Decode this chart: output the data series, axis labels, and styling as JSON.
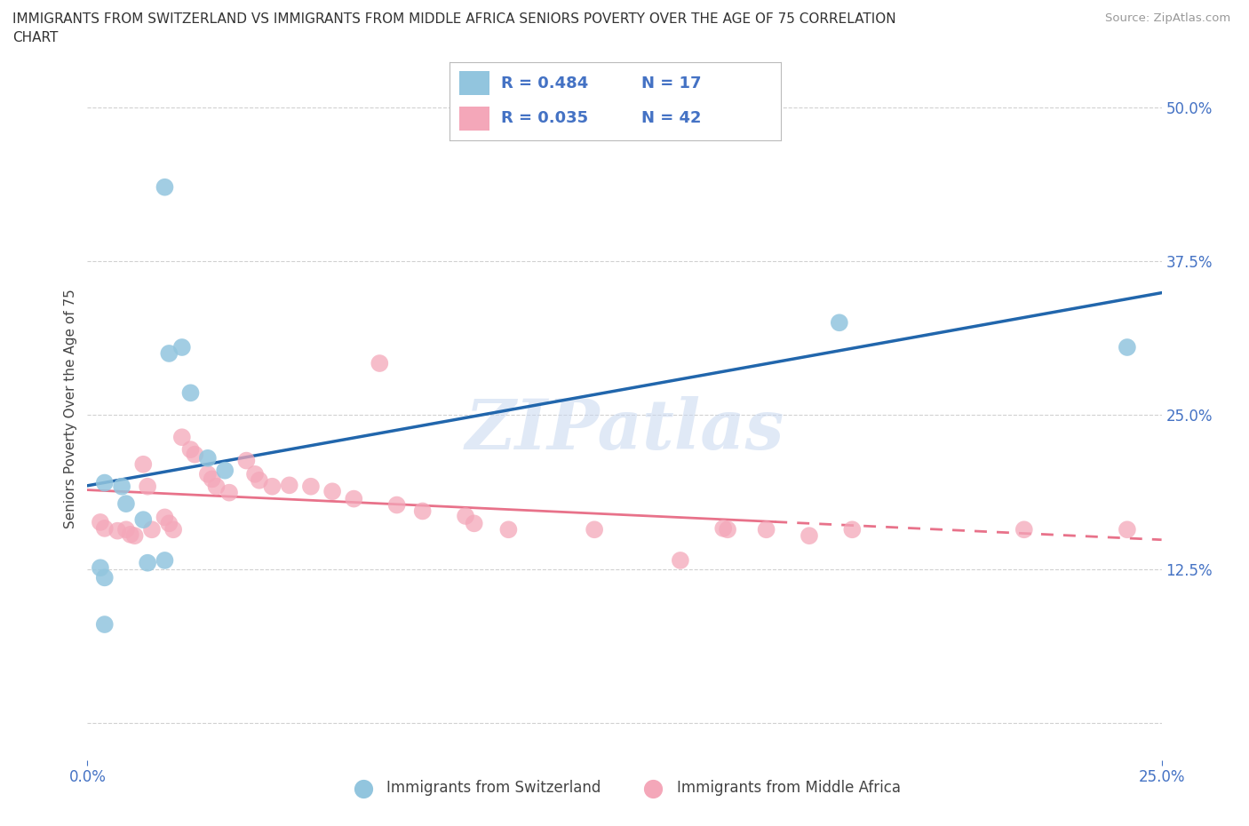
{
  "title_line1": "IMMIGRANTS FROM SWITZERLAND VS IMMIGRANTS FROM MIDDLE AFRICA SENIORS POVERTY OVER THE AGE OF 75 CORRELATION",
  "title_line2": "CHART",
  "source": "Source: ZipAtlas.com",
  "ylabel": "Seniors Poverty Over the Age of 75",
  "legend_label1": "Immigrants from Switzerland",
  "legend_label2": "Immigrants from Middle Africa",
  "R1": 0.484,
  "N1": 17,
  "R2": 0.035,
  "N2": 42,
  "color1": "#92c5de",
  "color2": "#f4a7b9",
  "trendline1_color": "#2166ac",
  "trendline2_color": "#e8728a",
  "watermark": "ZIPatlas",
  "xlim": [
    0.0,
    0.25
  ],
  "ylim": [
    -0.03,
    0.54
  ],
  "ytick_vals": [
    0.0,
    0.125,
    0.25,
    0.375,
    0.5
  ],
  "ytick_labels": [
    "",
    "12.5%",
    "25.0%",
    "37.5%",
    "50.0%"
  ],
  "xtick_vals": [
    0.0,
    0.25
  ],
  "xtick_labels": [
    "0.0%",
    "25.0%"
  ],
  "swiss_x": [
    0.018,
    0.019,
    0.022,
    0.024,
    0.028,
    0.032,
    0.004,
    0.008,
    0.009,
    0.013,
    0.014,
    0.018,
    0.003,
    0.004,
    0.004,
    0.175,
    0.242
  ],
  "swiss_y": [
    0.435,
    0.3,
    0.305,
    0.268,
    0.215,
    0.205,
    0.195,
    0.192,
    0.178,
    0.165,
    0.13,
    0.132,
    0.126,
    0.118,
    0.08,
    0.325,
    0.305
  ],
  "africa_x": [
    0.003,
    0.004,
    0.007,
    0.009,
    0.01,
    0.011,
    0.013,
    0.014,
    0.015,
    0.018,
    0.019,
    0.02,
    0.022,
    0.024,
    0.025,
    0.028,
    0.029,
    0.03,
    0.033,
    0.037,
    0.039,
    0.04,
    0.043,
    0.047,
    0.052,
    0.057,
    0.062,
    0.068,
    0.072,
    0.078,
    0.088,
    0.09,
    0.098,
    0.118,
    0.138,
    0.148,
    0.149,
    0.158,
    0.168,
    0.178,
    0.218,
    0.242
  ],
  "africa_y": [
    0.163,
    0.158,
    0.156,
    0.157,
    0.153,
    0.152,
    0.21,
    0.192,
    0.157,
    0.167,
    0.162,
    0.157,
    0.232,
    0.222,
    0.218,
    0.202,
    0.198,
    0.192,
    0.187,
    0.213,
    0.202,
    0.197,
    0.192,
    0.193,
    0.192,
    0.188,
    0.182,
    0.292,
    0.177,
    0.172,
    0.168,
    0.162,
    0.157,
    0.157,
    0.132,
    0.158,
    0.157,
    0.157,
    0.152,
    0.157,
    0.157,
    0.157
  ],
  "background_color": "#ffffff",
  "grid_color": "#cccccc",
  "tick_color": "#4472c4",
  "title_fontsize": 11,
  "axis_label_fontsize": 11,
  "tick_fontsize": 12
}
